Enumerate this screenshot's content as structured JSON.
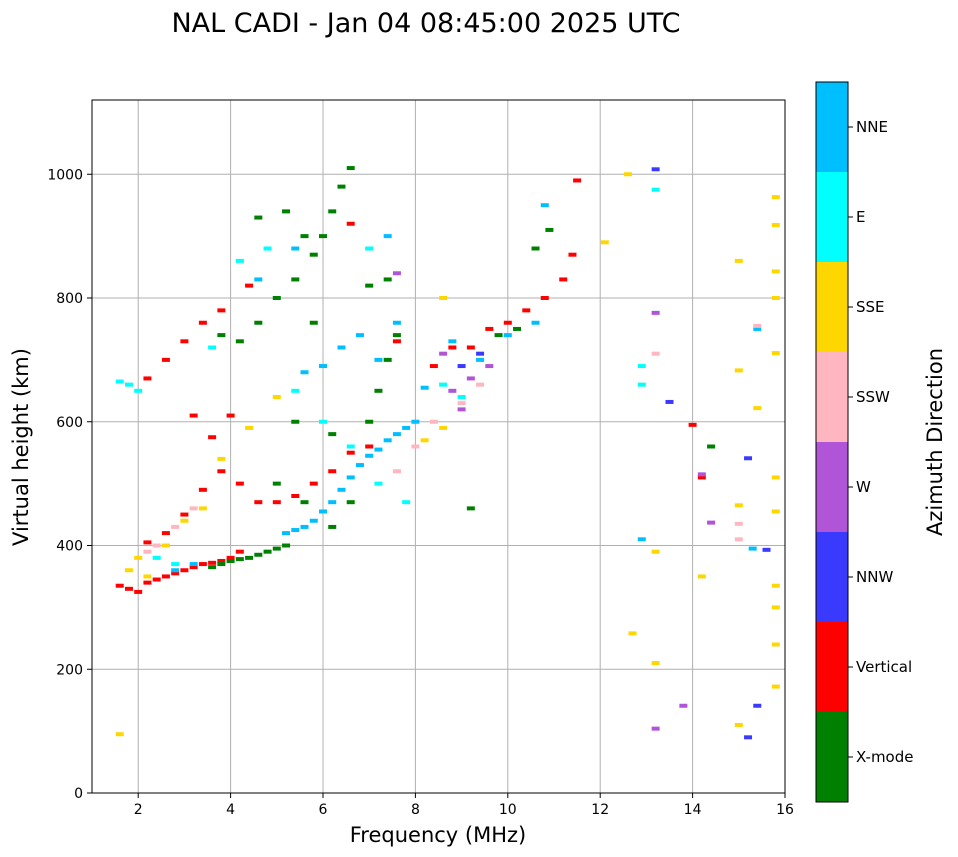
{
  "chart_data": {
    "type": "scatter",
    "title": "NAL CADI - Jan 04 08:45:00 2025 UTC",
    "xlabel": "Frequency (MHz)",
    "ylabel": "Virtual height (km)",
    "xlim": [
      1,
      16
    ],
    "ylim": [
      0,
      1120
    ],
    "xticks": [
      2,
      4,
      6,
      8,
      10,
      12,
      14,
      16
    ],
    "yticks": [
      0,
      200,
      400,
      600,
      800,
      1000
    ],
    "grid": true,
    "colorbar": {
      "label": "Azimuth Direction",
      "categories": [
        {
          "name": "X-mode",
          "color": "#008000"
        },
        {
          "name": "Vertical",
          "color": "#ff0000"
        },
        {
          "name": "NNW",
          "color": "#3a3aff"
        },
        {
          "name": "W",
          "color": "#b055d8"
        },
        {
          "name": "SSW",
          "color": "#ffb6c1"
        },
        {
          "name": "SSE",
          "color": "#ffd700"
        },
        {
          "name": "E",
          "color": "#00ffff"
        },
        {
          "name": "NNE",
          "color": "#00bfff"
        }
      ]
    },
    "traces": [
      {
        "name": "Vertical",
        "points": [
          [
            1.6,
            335
          ],
          [
            1.8,
            330
          ],
          [
            2.0,
            325
          ],
          [
            2.2,
            340
          ],
          [
            2.4,
            345
          ],
          [
            2.6,
            350
          ],
          [
            2.8,
            355
          ],
          [
            3.0,
            360
          ],
          [
            3.2,
            365
          ],
          [
            3.4,
            370
          ],
          [
            3.6,
            372
          ],
          [
            3.8,
            375
          ],
          [
            4.0,
            380
          ],
          [
            4.2,
            390
          ],
          [
            2.2,
            405
          ],
          [
            2.6,
            420
          ],
          [
            3.0,
            450
          ],
          [
            3.4,
            490
          ],
          [
            3.8,
            520
          ],
          [
            4.2,
            500
          ],
          [
            4.6,
            470
          ],
          [
            5.0,
            470
          ],
          [
            5.4,
            480
          ],
          [
            5.8,
            500
          ],
          [
            6.2,
            520
          ],
          [
            6.6,
            550
          ],
          [
            7.0,
            560
          ],
          [
            2.2,
            670
          ],
          [
            2.6,
            700
          ],
          [
            3.0,
            730
          ],
          [
            3.4,
            760
          ],
          [
            3.8,
            780
          ],
          [
            4.4,
            820
          ],
          [
            8.4,
            690
          ],
          [
            8.8,
            720
          ],
          [
            9.2,
            720
          ],
          [
            9.6,
            750
          ],
          [
            10.0,
            760
          ],
          [
            10.4,
            780
          ],
          [
            10.8,
            800
          ],
          [
            11.2,
            830
          ],
          [
            11.4,
            870
          ],
          [
            11.5,
            990
          ],
          [
            14.2,
            510
          ],
          [
            14.0,
            595
          ],
          [
            3.6,
            575
          ],
          [
            4.0,
            610
          ],
          [
            6.6,
            920
          ],
          [
            7.6,
            730
          ],
          [
            3.2,
            610
          ]
        ]
      },
      {
        "name": "X-mode",
        "points": [
          [
            3.6,
            365
          ],
          [
            3.8,
            370
          ],
          [
            4.0,
            375
          ],
          [
            4.2,
            378
          ],
          [
            4.4,
            380
          ],
          [
            4.6,
            385
          ],
          [
            4.8,
            390
          ],
          [
            5.0,
            395
          ],
          [
            5.2,
            400
          ],
          [
            4.2,
            730
          ],
          [
            4.6,
            760
          ],
          [
            5.0,
            800
          ],
          [
            5.4,
            830
          ],
          [
            5.8,
            870
          ],
          [
            6.0,
            900
          ],
          [
            6.2,
            940
          ],
          [
            6.4,
            980
          ],
          [
            6.6,
            1010
          ],
          [
            3.8,
            740
          ],
          [
            4.6,
            930
          ],
          [
            5.2,
            940
          ],
          [
            5.6,
            900
          ],
          [
            5.4,
            600
          ],
          [
            6.2,
            430
          ],
          [
            6.6,
            470
          ],
          [
            7.0,
            600
          ],
          [
            7.2,
            650
          ],
          [
            7.4,
            700
          ],
          [
            7.6,
            740
          ],
          [
            7.0,
            820
          ],
          [
            7.4,
            830
          ],
          [
            9.2,
            460
          ],
          [
            9.8,
            740
          ],
          [
            10.2,
            750
          ],
          [
            10.6,
            880
          ],
          [
            10.9,
            910
          ],
          [
            14.4,
            560
          ],
          [
            5.8,
            760
          ],
          [
            6.2,
            580
          ],
          [
            5.0,
            500
          ],
          [
            5.6,
            470
          ]
        ]
      },
      {
        "name": "NNE",
        "points": [
          [
            5.2,
            420
          ],
          [
            5.4,
            425
          ],
          [
            5.6,
            430
          ],
          [
            5.8,
            440
          ],
          [
            6.0,
            455
          ],
          [
            6.2,
            470
          ],
          [
            6.4,
            490
          ],
          [
            6.6,
            510
          ],
          [
            6.8,
            530
          ],
          [
            7.0,
            545
          ],
          [
            7.2,
            555
          ],
          [
            7.4,
            570
          ],
          [
            7.6,
            580
          ],
          [
            7.8,
            590
          ],
          [
            8.0,
            600
          ],
          [
            2.8,
            360
          ],
          [
            3.2,
            370
          ],
          [
            5.6,
            680
          ],
          [
            6.0,
            690
          ],
          [
            6.4,
            720
          ],
          [
            6.8,
            740
          ],
          [
            7.2,
            700
          ],
          [
            7.6,
            760
          ],
          [
            8.8,
            730
          ],
          [
            9.4,
            700
          ],
          [
            10.0,
            740
          ],
          [
            10.6,
            760
          ],
          [
            10.8,
            950
          ],
          [
            15.3,
            395
          ],
          [
            15.4,
            750
          ],
          [
            12.9,
            410
          ],
          [
            4.6,
            830
          ],
          [
            5.4,
            880
          ],
          [
            7.4,
            900
          ],
          [
            8.2,
            655
          ]
        ]
      },
      {
        "name": "E",
        "points": [
          [
            1.6,
            665
          ],
          [
            1.8,
            660
          ],
          [
            2.0,
            650
          ],
          [
            2.4,
            380
          ],
          [
            2.8,
            370
          ],
          [
            3.6,
            720
          ],
          [
            4.2,
            860
          ],
          [
            4.8,
            880
          ],
          [
            5.4,
            650
          ],
          [
            6.0,
            600
          ],
          [
            6.6,
            560
          ],
          [
            7.2,
            500
          ],
          [
            7.8,
            470
          ],
          [
            8.6,
            660
          ],
          [
            9.0,
            640
          ],
          [
            12.9,
            690
          ],
          [
            12.9,
            660
          ],
          [
            13.2,
            975
          ],
          [
            7.0,
            880
          ]
        ]
      },
      {
        "name": "SSE",
        "points": [
          [
            1.6,
            95
          ],
          [
            1.8,
            360
          ],
          [
            2.0,
            380
          ],
          [
            2.2,
            350
          ],
          [
            2.6,
            400
          ],
          [
            3.0,
            440
          ],
          [
            3.4,
            460
          ],
          [
            3.8,
            540
          ],
          [
            4.4,
            590
          ],
          [
            5.0,
            640
          ],
          [
            8.2,
            570
          ],
          [
            8.6,
            590
          ],
          [
            8.6,
            800
          ],
          [
            12.1,
            890
          ],
          [
            12.6,
            1000
          ],
          [
            12.7,
            258
          ],
          [
            13.2,
            390
          ],
          [
            13.2,
            210
          ],
          [
            14.2,
            350
          ],
          [
            15.0,
            110
          ],
          [
            15.0,
            465
          ],
          [
            15.0,
            860
          ],
          [
            15.0,
            683
          ],
          [
            15.4,
            622
          ],
          [
            15.8,
            510
          ],
          [
            15.8,
            455
          ],
          [
            15.8,
            335
          ],
          [
            15.8,
            300
          ],
          [
            15.8,
            240
          ],
          [
            15.8,
            172
          ],
          [
            15.8,
            711
          ],
          [
            15.8,
            800
          ],
          [
            15.8,
            843
          ],
          [
            15.8,
            918
          ],
          [
            15.8,
            963
          ]
        ]
      },
      {
        "name": "SSW",
        "points": [
          [
            2.2,
            390
          ],
          [
            2.4,
            400
          ],
          [
            2.8,
            430
          ],
          [
            3.2,
            460
          ],
          [
            7.6,
            520
          ],
          [
            8.0,
            560
          ],
          [
            8.4,
            600
          ],
          [
            9.0,
            630
          ],
          [
            9.4,
            660
          ],
          [
            13.2,
            710
          ],
          [
            15.0,
            435
          ],
          [
            15.0,
            410
          ],
          [
            15.4,
            755
          ]
        ]
      },
      {
        "name": "W",
        "points": [
          [
            8.8,
            650
          ],
          [
            9.2,
            670
          ],
          [
            9.6,
            690
          ],
          [
            9.0,
            620
          ],
          [
            8.6,
            710
          ],
          [
            14.2,
            515
          ],
          [
            14.4,
            437
          ],
          [
            13.8,
            141
          ],
          [
            13.2,
            104
          ],
          [
            13.2,
            776
          ],
          [
            7.6,
            840
          ]
        ]
      },
      {
        "name": "NNW",
        "points": [
          [
            9.0,
            690
          ],
          [
            9.4,
            710
          ],
          [
            13.2,
            1008
          ],
          [
            13.5,
            632
          ],
          [
            15.2,
            541
          ],
          [
            15.2,
            90
          ],
          [
            15.4,
            141
          ],
          [
            15.6,
            393
          ]
        ]
      }
    ]
  }
}
